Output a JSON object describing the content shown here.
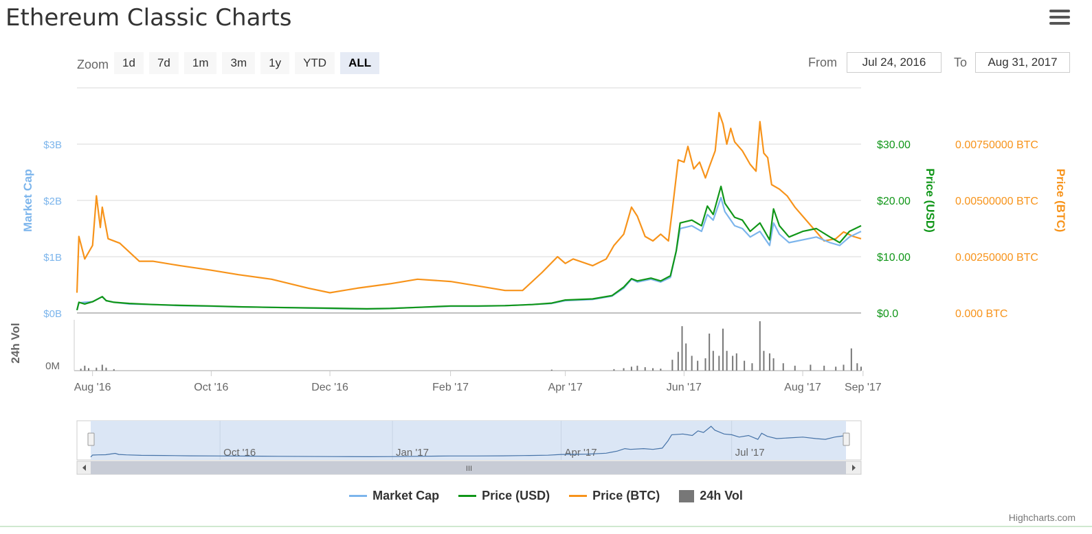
{
  "title": "Ethereum Classic Charts",
  "zoom": {
    "label": "Zoom",
    "buttons": [
      "1d",
      "7d",
      "1m",
      "3m",
      "1y",
      "YTD",
      "ALL"
    ],
    "active": "ALL"
  },
  "range": {
    "from_label": "From",
    "from_value": "Jul 24, 2016",
    "to_label": "To",
    "to_value": "Aug 31, 2017"
  },
  "colors": {
    "market_cap": "#7cb5ec",
    "price_usd": "#109618",
    "price_btc": "#f7931a",
    "volume": "#777777",
    "navigator_fill": "#dbe6f5"
  },
  "legend": [
    {
      "name": "Market Cap",
      "type": "line",
      "color": "#7cb5ec"
    },
    {
      "name": "Price (USD)",
      "type": "line",
      "color": "#109618"
    },
    {
      "name": "Price (BTC)",
      "type": "line",
      "color": "#f7931a"
    },
    {
      "name": "24h Vol",
      "type": "box",
      "color": "#777777"
    }
  ],
  "credit": "Highcharts.com",
  "navigator": {
    "labels": [
      "Oct '16",
      "Jan '17",
      "Apr '17",
      "Jul '17"
    ],
    "label_dates": [
      "2016-10-01",
      "2017-01-01",
      "2017-04-01",
      "2017-07-01"
    ],
    "scrollbar_icon": "III"
  },
  "chart_data": {
    "type": "line",
    "x_axis": {
      "ticks": [
        "Aug '16",
        "Oct '16",
        "Dec '16",
        "Feb '17",
        "Apr '17",
        "Jun '17",
        "Aug '17",
        "Sep '17"
      ],
      "tick_dates": [
        "2016-08-01",
        "2016-10-01",
        "2016-12-01",
        "2017-02-01",
        "2017-04-01",
        "2017-06-01",
        "2017-08-01",
        "2017-09-01"
      ],
      "range": [
        "2016-07-24",
        "2017-08-31"
      ]
    },
    "y_axes": [
      {
        "label": "Market Cap",
        "ticks": [
          "$0B",
          "$1B",
          "$2B",
          "$3B"
        ],
        "range": [
          0,
          4
        ]
      },
      {
        "label": "Price (USD)",
        "ticks": [
          "$0.0",
          "$10.00",
          "$20.00",
          "$30.00"
        ],
        "range": [
          0,
          40
        ]
      },
      {
        "label": "Price (BTC)",
        "ticks": [
          "0.000 BTC",
          "0.00250000 BTC",
          "0.00500000 BTC",
          "0.00750000 BTC"
        ],
        "range": [
          0,
          0.01
        ]
      },
      {
        "label": "24h Vol",
        "ticks": [
          "0M"
        ]
      }
    ],
    "series": [
      {
        "name": "Market Cap",
        "unit": "billion USD",
        "points": [
          [
            "2016-07-24",
            0.05
          ],
          [
            "2016-07-25",
            0.18
          ],
          [
            "2016-07-28",
            0.19
          ],
          [
            "2016-08-01",
            0.2
          ],
          [
            "2016-08-06",
            0.29
          ],
          [
            "2016-08-08",
            0.22
          ],
          [
            "2016-08-12",
            0.19
          ],
          [
            "2016-08-20",
            0.16
          ],
          [
            "2016-09-01",
            0.15
          ],
          [
            "2016-09-15",
            0.13
          ],
          [
            "2016-10-01",
            0.12
          ],
          [
            "2016-10-15",
            0.11
          ],
          [
            "2016-11-01",
            0.1
          ],
          [
            "2016-12-01",
            0.08
          ],
          [
            "2016-12-20",
            0.07
          ],
          [
            "2017-01-01",
            0.08
          ],
          [
            "2017-01-15",
            0.1
          ],
          [
            "2017-02-01",
            0.12
          ],
          [
            "2017-02-15",
            0.12
          ],
          [
            "2017-03-01",
            0.13
          ],
          [
            "2017-03-15",
            0.15
          ],
          [
            "2017-03-25",
            0.17
          ],
          [
            "2017-04-01",
            0.22
          ],
          [
            "2017-04-15",
            0.24
          ],
          [
            "2017-04-25",
            0.3
          ],
          [
            "2017-05-01",
            0.44
          ],
          [
            "2017-05-05",
            0.6
          ],
          [
            "2017-05-08",
            0.55
          ],
          [
            "2017-05-15",
            0.6
          ],
          [
            "2017-05-20",
            0.55
          ],
          [
            "2017-05-25",
            0.63
          ],
          [
            "2017-05-28",
            1.1
          ],
          [
            "2017-05-30",
            1.5
          ],
          [
            "2017-06-05",
            1.55
          ],
          [
            "2017-06-10",
            1.45
          ],
          [
            "2017-06-13",
            1.75
          ],
          [
            "2017-06-16",
            1.65
          ],
          [
            "2017-06-20",
            2.05
          ],
          [
            "2017-06-22",
            1.8
          ],
          [
            "2017-06-27",
            1.55
          ],
          [
            "2017-07-01",
            1.5
          ],
          [
            "2017-07-05",
            1.35
          ],
          [
            "2017-07-10",
            1.45
          ],
          [
            "2017-07-15",
            1.2
          ],
          [
            "2017-07-17",
            1.6
          ],
          [
            "2017-07-20",
            1.4
          ],
          [
            "2017-07-25",
            1.25
          ],
          [
            "2017-08-01",
            1.3
          ],
          [
            "2017-08-08",
            1.35
          ],
          [
            "2017-08-15",
            1.25
          ],
          [
            "2017-08-20",
            1.2
          ],
          [
            "2017-08-25",
            1.35
          ],
          [
            "2017-08-31",
            1.45
          ]
        ]
      },
      {
        "name": "Price (USD)",
        "unit": "USD",
        "points": [
          [
            "2016-07-24",
            0.5
          ],
          [
            "2016-07-25",
            1.9
          ],
          [
            "2016-07-28",
            1.6
          ],
          [
            "2016-08-01",
            2.0
          ],
          [
            "2016-08-06",
            2.9
          ],
          [
            "2016-08-08",
            2.2
          ],
          [
            "2016-08-12",
            1.9
          ],
          [
            "2016-08-20",
            1.7
          ],
          [
            "2016-09-01",
            1.5
          ],
          [
            "2016-09-15",
            1.35
          ],
          [
            "2016-10-01",
            1.25
          ],
          [
            "2016-10-15",
            1.1
          ],
          [
            "2016-11-01",
            1.0
          ],
          [
            "2016-12-01",
            0.85
          ],
          [
            "2016-12-20",
            0.75
          ],
          [
            "2017-01-01",
            0.8
          ],
          [
            "2017-01-15",
            1.0
          ],
          [
            "2017-02-01",
            1.25
          ],
          [
            "2017-02-15",
            1.25
          ],
          [
            "2017-03-01",
            1.3
          ],
          [
            "2017-03-15",
            1.5
          ],
          [
            "2017-03-25",
            1.75
          ],
          [
            "2017-04-01",
            2.3
          ],
          [
            "2017-04-15",
            2.5
          ],
          [
            "2017-04-25",
            3.1
          ],
          [
            "2017-05-01",
            4.6
          ],
          [
            "2017-05-05",
            6.1
          ],
          [
            "2017-05-08",
            5.7
          ],
          [
            "2017-05-15",
            6.2
          ],
          [
            "2017-05-20",
            5.7
          ],
          [
            "2017-05-25",
            6.6
          ],
          [
            "2017-05-28",
            11.0
          ],
          [
            "2017-05-30",
            16.0
          ],
          [
            "2017-06-05",
            16.5
          ],
          [
            "2017-06-10",
            15.5
          ],
          [
            "2017-06-13",
            19.0
          ],
          [
            "2017-06-16",
            17.5
          ],
          [
            "2017-06-20",
            22.5
          ],
          [
            "2017-06-22",
            19.5
          ],
          [
            "2017-06-27",
            17.0
          ],
          [
            "2017-07-01",
            16.5
          ],
          [
            "2017-07-05",
            14.5
          ],
          [
            "2017-07-10",
            16.0
          ],
          [
            "2017-07-15",
            13.0
          ],
          [
            "2017-07-17",
            18.5
          ],
          [
            "2017-07-20",
            15.5
          ],
          [
            "2017-07-25",
            13.5
          ],
          [
            "2017-08-01",
            14.5
          ],
          [
            "2017-08-08",
            15.0
          ],
          [
            "2017-08-15",
            13.5
          ],
          [
            "2017-08-20",
            12.5
          ],
          [
            "2017-08-25",
            14.5
          ],
          [
            "2017-08-31",
            15.5
          ]
        ]
      },
      {
        "name": "Price (BTC)",
        "unit": "BTC",
        "points": [
          [
            "2016-07-24",
            0.0009
          ],
          [
            "2016-07-25",
            0.0034
          ],
          [
            "2016-07-28",
            0.0024
          ],
          [
            "2016-08-01",
            0.003
          ],
          [
            "2016-08-03",
            0.0052
          ],
          [
            "2016-08-05",
            0.0038
          ],
          [
            "2016-08-06",
            0.0047
          ],
          [
            "2016-08-09",
            0.0033
          ],
          [
            "2016-08-15",
            0.0031
          ],
          [
            "2016-08-25",
            0.0023
          ],
          [
            "2016-09-01",
            0.0023
          ],
          [
            "2016-09-15",
            0.0021
          ],
          [
            "2016-10-01",
            0.0019
          ],
          [
            "2016-10-15",
            0.0017
          ],
          [
            "2016-11-01",
            0.0015
          ],
          [
            "2016-11-20",
            0.0011
          ],
          [
            "2016-12-01",
            0.0009
          ],
          [
            "2016-12-15",
            0.0011
          ],
          [
            "2017-01-01",
            0.0013
          ],
          [
            "2017-01-15",
            0.0015
          ],
          [
            "2017-02-01",
            0.0014
          ],
          [
            "2017-02-15",
            0.0012
          ],
          [
            "2017-03-01",
            0.001
          ],
          [
            "2017-03-10",
            0.001
          ],
          [
            "2017-03-20",
            0.0018
          ],
          [
            "2017-03-28",
            0.0025
          ],
          [
            "2017-04-01",
            0.0022
          ],
          [
            "2017-04-05",
            0.0024
          ],
          [
            "2017-04-15",
            0.0021
          ],
          [
            "2017-04-22",
            0.0024
          ],
          [
            "2017-04-26",
            0.003
          ],
          [
            "2017-05-01",
            0.0035
          ],
          [
            "2017-05-05",
            0.0047
          ],
          [
            "2017-05-08",
            0.0043
          ],
          [
            "2017-05-12",
            0.0034
          ],
          [
            "2017-05-16",
            0.0032
          ],
          [
            "2017-05-20",
            0.0035
          ],
          [
            "2017-05-24",
            0.0032
          ],
          [
            "2017-05-26",
            0.0046
          ],
          [
            "2017-05-29",
            0.0068
          ],
          [
            "2017-06-01",
            0.0067
          ],
          [
            "2017-06-03",
            0.0074
          ],
          [
            "2017-06-06",
            0.0064
          ],
          [
            "2017-06-09",
            0.0067
          ],
          [
            "2017-06-12",
            0.006
          ],
          [
            "2017-06-14",
            0.0065
          ],
          [
            "2017-06-17",
            0.0072
          ],
          [
            "2017-06-19",
            0.0089
          ],
          [
            "2017-06-21",
            0.0084
          ],
          [
            "2017-06-23",
            0.0075
          ],
          [
            "2017-06-25",
            0.0082
          ],
          [
            "2017-06-27",
            0.0076
          ],
          [
            "2017-07-01",
            0.0072
          ],
          [
            "2017-07-05",
            0.0066
          ],
          [
            "2017-07-08",
            0.0063
          ],
          [
            "2017-07-10",
            0.0085
          ],
          [
            "2017-07-12",
            0.0071
          ],
          [
            "2017-07-14",
            0.0069
          ],
          [
            "2017-07-16",
            0.0057
          ],
          [
            "2017-07-20",
            0.0055
          ],
          [
            "2017-07-24",
            0.0052
          ],
          [
            "2017-07-28",
            0.0047
          ],
          [
            "2017-08-03",
            0.0041
          ],
          [
            "2017-08-08",
            0.0036
          ],
          [
            "2017-08-12",
            0.0032
          ],
          [
            "2017-08-18",
            0.0033
          ],
          [
            "2017-08-22",
            0.0036
          ],
          [
            "2017-08-27",
            0.0034
          ],
          [
            "2017-08-31",
            0.0033
          ]
        ]
      },
      {
        "name": "24h Vol",
        "type": "bar",
        "values_note": "",
        "points": [
          [
            "2016-07-26",
            0.04
          ],
          [
            "2016-07-28",
            0.1
          ],
          [
            "2016-07-30",
            0.05
          ],
          [
            "2016-08-03",
            0.06
          ],
          [
            "2016-08-06",
            0.12
          ],
          [
            "2016-08-08",
            0.06
          ],
          [
            "2016-08-12",
            0.03
          ],
          [
            "2017-03-25",
            0.02
          ],
          [
            "2017-04-26",
            0.03
          ],
          [
            "2017-05-01",
            0.05
          ],
          [
            "2017-05-05",
            0.08
          ],
          [
            "2017-05-08",
            0.1
          ],
          [
            "2017-05-12",
            0.07
          ],
          [
            "2017-05-16",
            0.05
          ],
          [
            "2017-05-20",
            0.04
          ],
          [
            "2017-05-26",
            0.22
          ],
          [
            "2017-05-29",
            0.38
          ],
          [
            "2017-05-31",
            0.9
          ],
          [
            "2017-06-02",
            0.55
          ],
          [
            "2017-06-05",
            0.3
          ],
          [
            "2017-06-08",
            0.2
          ],
          [
            "2017-06-12",
            0.25
          ],
          [
            "2017-06-14",
            0.75
          ],
          [
            "2017-06-16",
            0.4
          ],
          [
            "2017-06-19",
            0.3
          ],
          [
            "2017-06-21",
            0.85
          ],
          [
            "2017-06-23",
            0.4
          ],
          [
            "2017-06-26",
            0.3
          ],
          [
            "2017-06-28",
            0.35
          ],
          [
            "2017-07-02",
            0.2
          ],
          [
            "2017-07-06",
            0.15
          ],
          [
            "2017-07-10",
            1.0
          ],
          [
            "2017-07-12",
            0.4
          ],
          [
            "2017-07-15",
            0.35
          ],
          [
            "2017-07-17",
            0.25
          ],
          [
            "2017-07-22",
            0.15
          ],
          [
            "2017-07-28",
            0.1
          ],
          [
            "2017-08-05",
            0.12
          ],
          [
            "2017-08-12",
            0.1
          ],
          [
            "2017-08-18",
            0.08
          ],
          [
            "2017-08-22",
            0.12
          ],
          [
            "2017-08-26",
            0.45
          ],
          [
            "2017-08-29",
            0.15
          ],
          [
            "2017-08-31",
            0.08
          ]
        ]
      }
    ],
    "legend_position": "bottom-center",
    "grid": true
  }
}
